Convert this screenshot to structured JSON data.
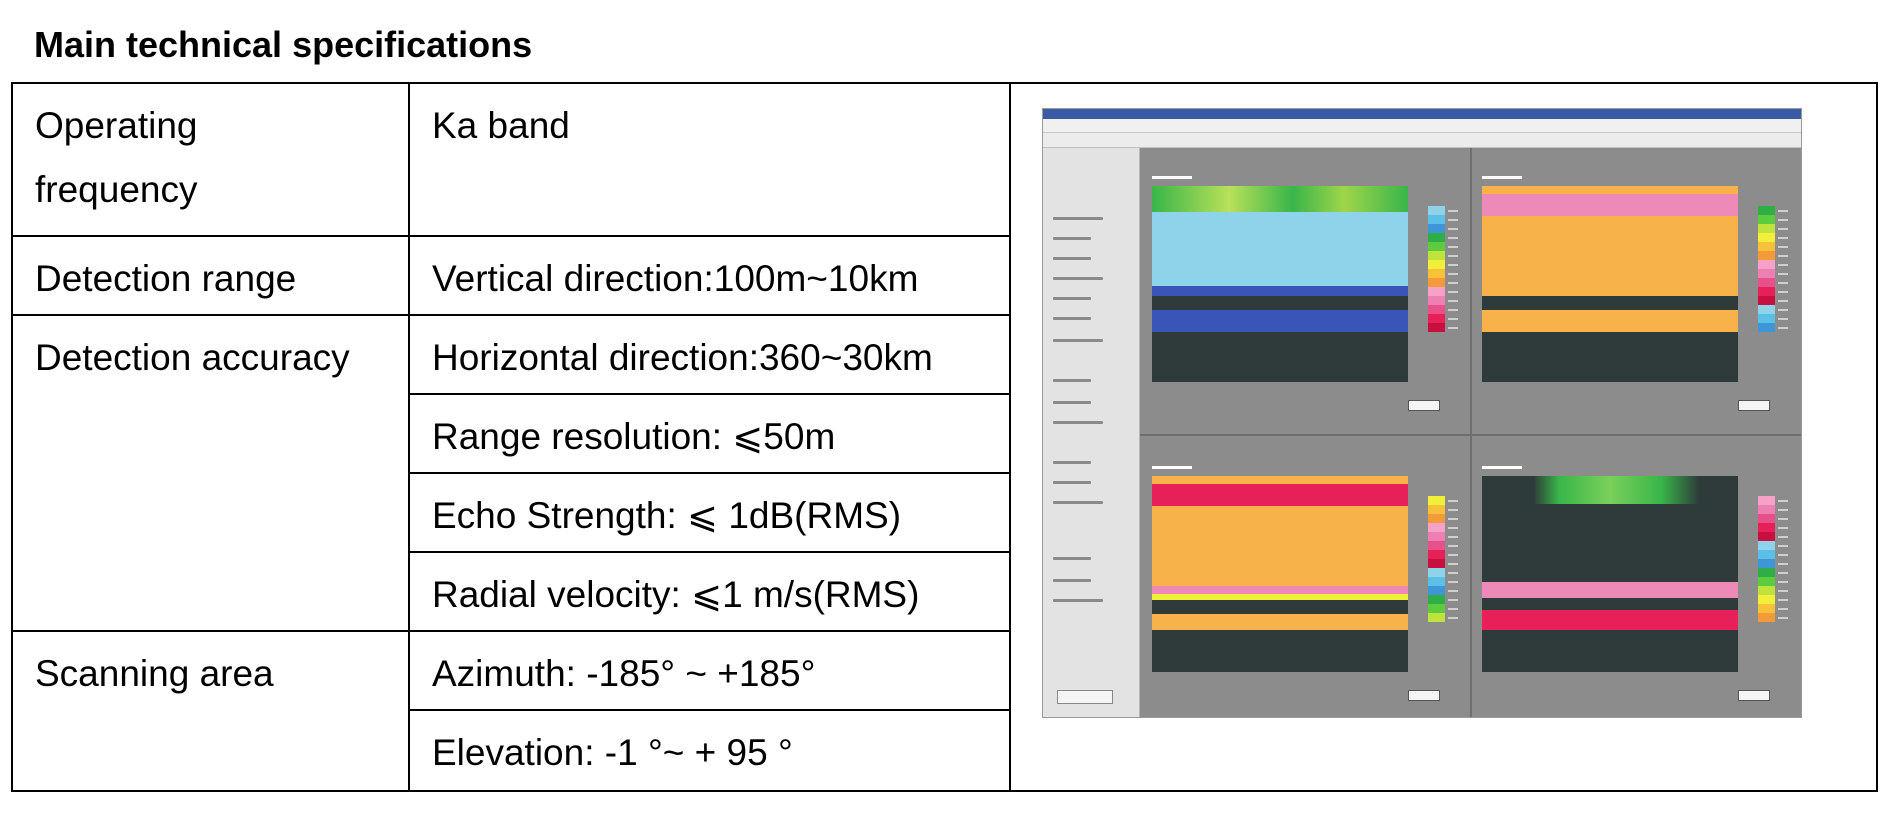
{
  "title": "Main technical specifications",
  "rows": [
    {
      "label": "Operating frequency",
      "label_lines": [
        "Operating",
        "frequency"
      ],
      "value": "Ka band"
    },
    {
      "label": "Detection range",
      "value": "Vertical direction:100m~10km"
    },
    {
      "label": "Detection accuracy",
      "values": [
        "Horizontal direction:360~30km",
        "Range resolution: ⩽50m",
        "Echo Strength: ⩽ 1dB(RMS)",
        "Radial velocity: ⩽1 m/s(RMS)"
      ]
    },
    {
      "label": "Scanning area",
      "values": [
        "Azimuth: -185° ~ +185°",
        "Elevation: -1 °~ + 95 °"
      ]
    }
  ],
  "screenshot": {
    "icon": "radar-software-screenshot",
    "colors": {
      "window_bg": "#e3e3e3",
      "plot_bg": "#8c8c8c",
      "dark_band": "#2f3a3a",
      "sky_blue": "#8fd3ea",
      "deep_blue": "#3a55b8",
      "green": "#39b54a",
      "orange": "#f7b24a",
      "pink": "#ee8ab8",
      "red": "#e8205a"
    }
  }
}
